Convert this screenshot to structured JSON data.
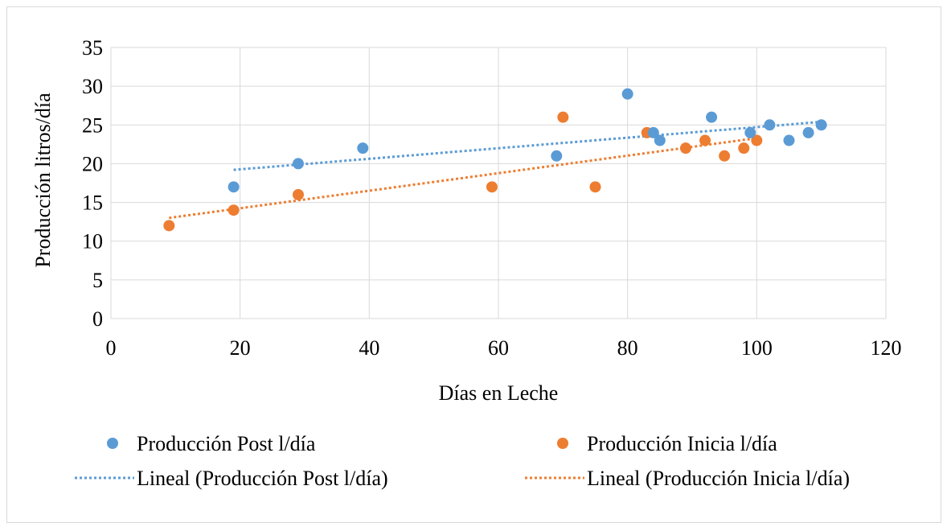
{
  "chart_data": {
    "type": "scatter",
    "title": "",
    "xlabel": "Días en Leche",
    "ylabel": "Producción litros/día",
    "xlim": [
      0,
      120
    ],
    "ylim": [
      0,
      35
    ],
    "xticks": [
      0,
      20,
      40,
      60,
      80,
      100,
      120
    ],
    "yticks": [
      0,
      5,
      10,
      15,
      20,
      25,
      30,
      35
    ],
    "grid": true,
    "legend_position": "bottom",
    "series": [
      {
        "name": "Producción Post l/día",
        "color": "#5b9bd5",
        "x": [
          19,
          29,
          39,
          69,
          80,
          84,
          85,
          93,
          99,
          102,
          105,
          108,
          110
        ],
        "y": [
          17,
          20,
          22,
          21,
          29,
          24,
          23,
          26,
          24,
          25,
          23,
          24,
          25
        ]
      },
      {
        "name": "Producción Inicia l/día",
        "color": "#ed7d31",
        "x": [
          9,
          19,
          29,
          59,
          70,
          75,
          83,
          89,
          92,
          95,
          98,
          100
        ],
        "y": [
          12,
          14,
          16,
          17,
          26,
          17,
          24,
          22,
          23,
          21,
          22,
          23
        ]
      }
    ],
    "trendlines": [
      {
        "name": "Lineal (Producción Post l/día)",
        "color": "#5b9bd5",
        "x": [
          19,
          110
        ],
        "y": [
          19.2,
          25.4
        ]
      },
      {
        "name": "Lineal (Producción Inicia l/día)",
        "color": "#ed7d31",
        "x": [
          9,
          100
        ],
        "y": [
          13.0,
          23.3
        ]
      }
    ]
  }
}
